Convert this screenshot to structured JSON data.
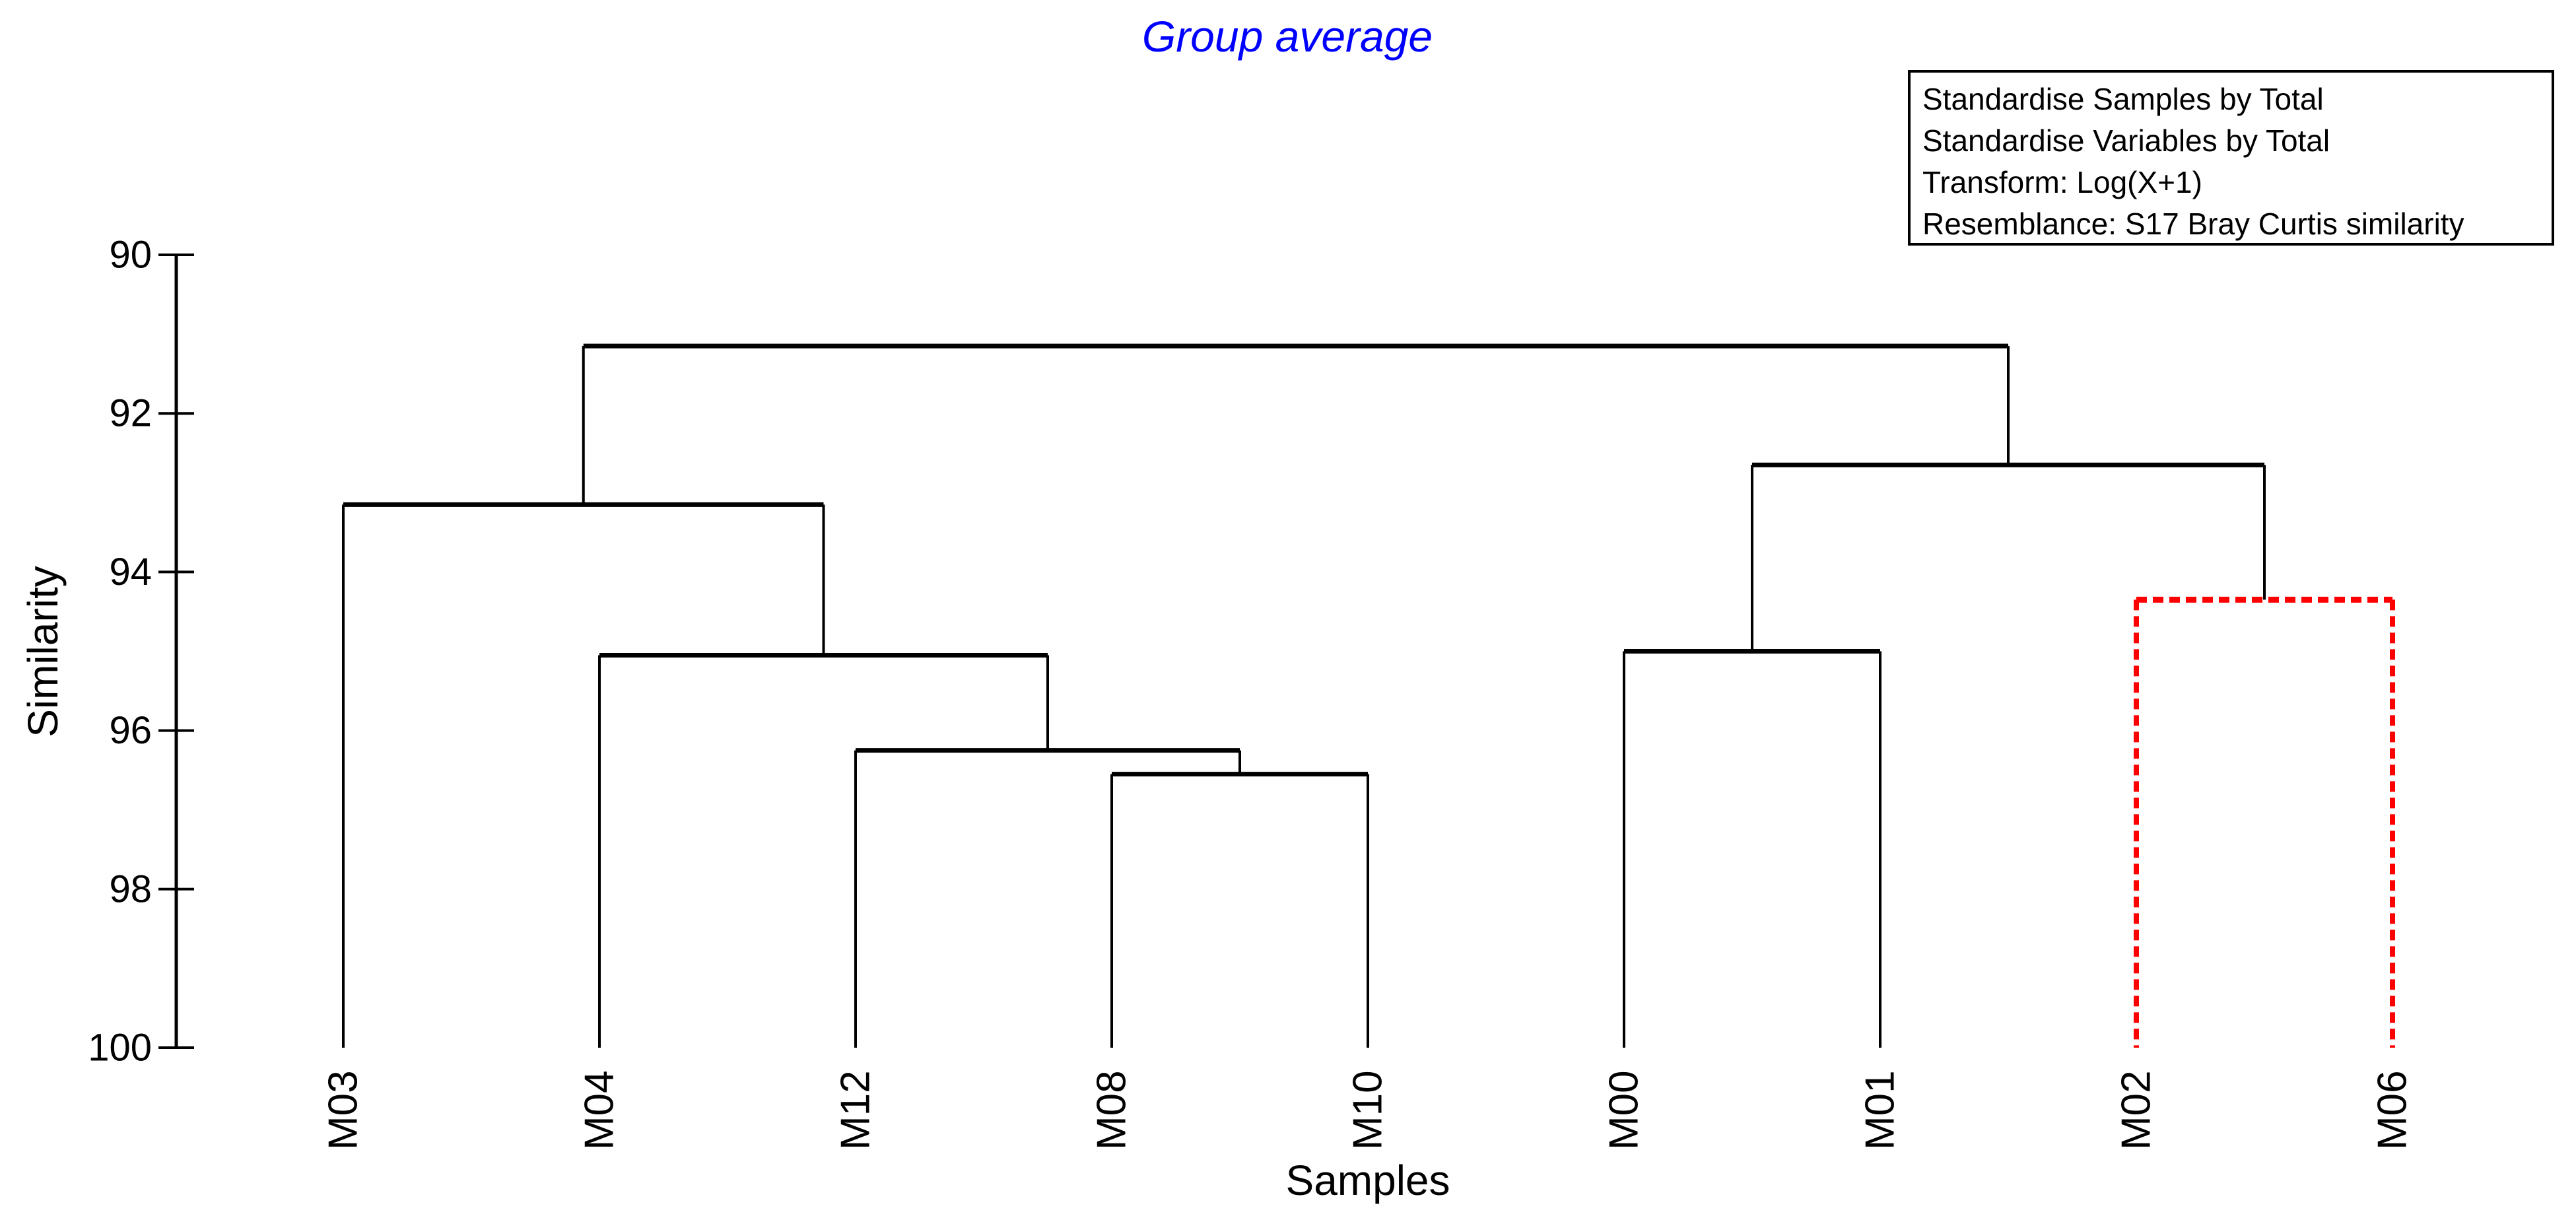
{
  "page": {
    "background": "#FFFFFF"
  },
  "chart_data": {
    "type": "dendrogram",
    "title": "Group average",
    "xlabel": "Samples",
    "ylabel": "Similarity",
    "y_axis": {
      "min": 90,
      "max": 100,
      "ticks": [
        90,
        92,
        94,
        96,
        98,
        100
      ],
      "direction": "increasing-downward"
    },
    "leaves": [
      "M03",
      "M04",
      "M12",
      "M08",
      "M10",
      "M00",
      "M01",
      "M02",
      "M06"
    ],
    "merges": [
      {
        "id": "n1",
        "children": [
          "M08",
          "M10"
        ],
        "similarity": 96.55,
        "style": "solid",
        "color": "#000000"
      },
      {
        "id": "n2",
        "children": [
          "M12",
          "n1"
        ],
        "similarity": 96.25,
        "style": "solid",
        "color": "#000000"
      },
      {
        "id": "n3",
        "children": [
          "M04",
          "n2"
        ],
        "similarity": 95.05,
        "style": "solid",
        "color": "#000000"
      },
      {
        "id": "n4",
        "children": [
          "M03",
          "n3"
        ],
        "similarity": 93.15,
        "style": "solid",
        "color": "#000000"
      },
      {
        "id": "n5",
        "children": [
          "M00",
          "M01"
        ],
        "similarity": 95.0,
        "style": "solid",
        "color": "#000000"
      },
      {
        "id": "n6",
        "children": [
          "M02",
          "M06"
        ],
        "similarity": 94.35,
        "style": "dashed",
        "color": "#FF0000"
      },
      {
        "id": "n7",
        "children": [
          "n5",
          "n6"
        ],
        "similarity": 92.65,
        "style": "solid",
        "color": "#000000"
      },
      {
        "id": "n8",
        "children": [
          "n4",
          "n7"
        ],
        "similarity": 91.15,
        "style": "solid",
        "color": "#000000"
      }
    ],
    "grid": false,
    "legend_position": "none"
  },
  "annotation_box": {
    "lines": [
      "Standardise Samples by Total",
      "Standardise Variables by Total",
      "Transform: Log(X+1)",
      "Resemblance: S17 Bray Curtis similarity"
    ]
  },
  "colors": {
    "line": "#000000",
    "highlight_cluster": "#FF0000",
    "title": "#0000FF",
    "background": "#FFFFFF"
  }
}
